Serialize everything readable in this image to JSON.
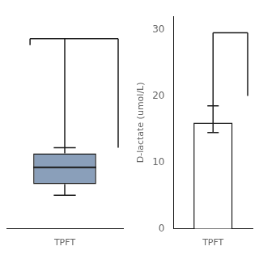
{
  "chart_data": [
    {
      "type": "box",
      "categories": [
        "TPFT"
      ],
      "q1": [
        8.0
      ],
      "median": [
        11.0
      ],
      "q3": [
        13.5
      ],
      "whisker_low": [
        6.0
      ],
      "whisker_high": [
        14.5
      ],
      "bracket_y": 34.0,
      "color": "#8a9fba",
      "ylim": [
        0,
        38
      ],
      "grid": false,
      "tick_labels": "x"
    },
    {
      "type": "bar",
      "categories": [
        "TPFT"
      ],
      "values": [
        16.0
      ],
      "error_low": [
        1.5
      ],
      "error_high": [
        2.5
      ],
      "bracket_y": 29.5,
      "bracket_drop_right": 20.0,
      "color": "#ffffff",
      "ylabel": "D-lactate (umol/L)",
      "ylim": [
        0,
        32
      ],
      "yticks": [
        0,
        10,
        20,
        30
      ],
      "grid": false
    }
  ]
}
